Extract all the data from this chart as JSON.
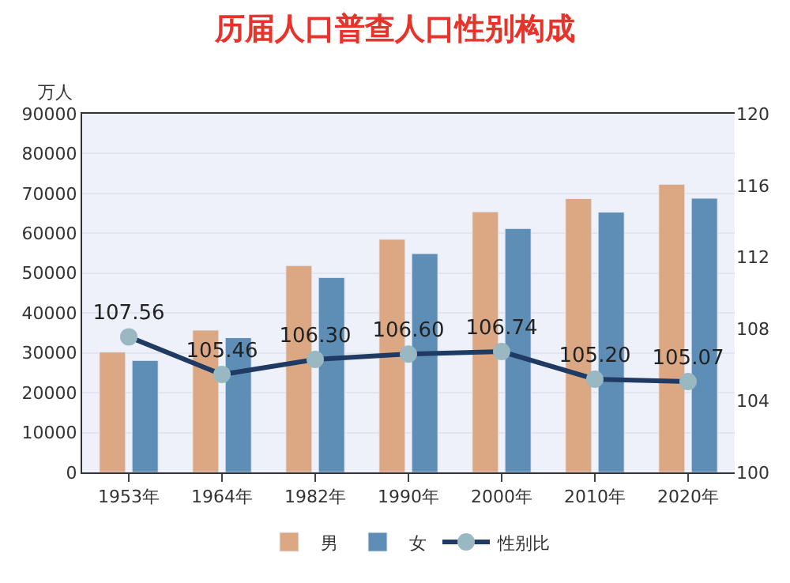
{
  "chart_data": {
    "type": "bar",
    "title": "历届人口普查人口性别构成",
    "ylabel": "万人",
    "categories": [
      "1953年",
      "1964年",
      "1982年",
      "1990年",
      "2000年",
      "2010年",
      "2020年"
    ],
    "series": [
      {
        "name": "男",
        "color": "#dca783",
        "values": [
          30200,
          35700,
          51900,
          58500,
          65400,
          68700,
          72300
        ]
      },
      {
        "name": "女",
        "color": "#5e8db5",
        "values": [
          28100,
          33800,
          48900,
          54900,
          61200,
          65300,
          68800
        ]
      },
      {
        "name": "性别比",
        "type": "line",
        "axis": "y2",
        "color": "#1f3a63",
        "marker": "circle",
        "values": [
          107.56,
          105.46,
          106.3,
          106.6,
          106.74,
          105.2,
          105.07
        ],
        "value_labels": [
          "107.56",
          "105.46",
          "106.30",
          "106.60",
          "106.74",
          "105.20",
          "105.07"
        ]
      }
    ],
    "ylim": [
      0,
      90000
    ],
    "yticks": [
      0,
      10000,
      20000,
      30000,
      40000,
      50000,
      60000,
      70000,
      80000,
      90000
    ],
    "y2lim": [
      100,
      120
    ],
    "y2ticks": [
      100,
      104,
      108,
      112,
      116,
      120
    ],
    "grid": "y",
    "legend": "bottom"
  }
}
